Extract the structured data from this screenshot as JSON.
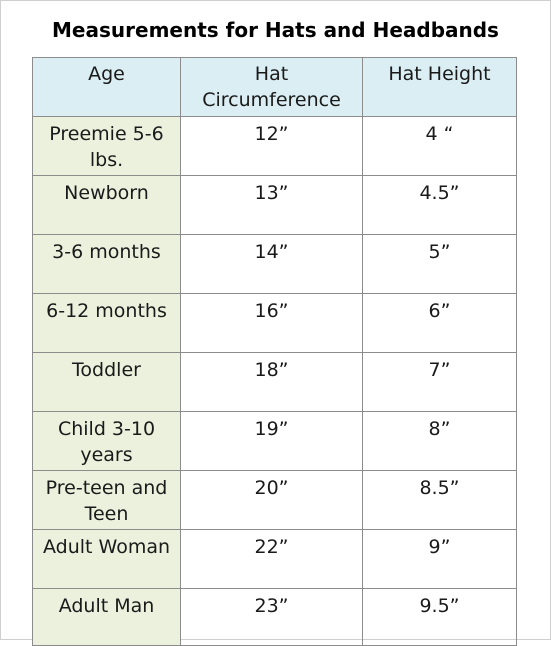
{
  "title": "Measurements for Hats and Headbands",
  "colors": {
    "header_bg": "#daeef3",
    "age_column_bg": "#ebf1dd",
    "grid": "#8c8c8c"
  },
  "table": {
    "headers": {
      "age": "Age",
      "circumference": "Hat Circumference",
      "height": "Hat Height"
    },
    "rows": [
      {
        "age": "Preemie 5-6 lbs.",
        "circumference": "12”",
        "height": "4 “"
      },
      {
        "age": "Newborn",
        "circumference": "13”",
        "height": "4.5”"
      },
      {
        "age": "3-6 months",
        "circumference": "14”",
        "height": "5”"
      },
      {
        "age": "6-12 months",
        "circumference": "16”",
        "height": "6”"
      },
      {
        "age": "Toddler",
        "circumference": "18”",
        "height": "7”"
      },
      {
        "age": "Child 3-10 years",
        "circumference": "19”",
        "height": "8”"
      },
      {
        "age": "Pre-teen and Teen",
        "circumference": "20”",
        "height": "8.5”"
      },
      {
        "age": "Adult Woman",
        "circumference": "22”",
        "height": "9”"
      },
      {
        "age": "Adult Man",
        "circumference": "23”",
        "height": "9.5”"
      }
    ]
  }
}
